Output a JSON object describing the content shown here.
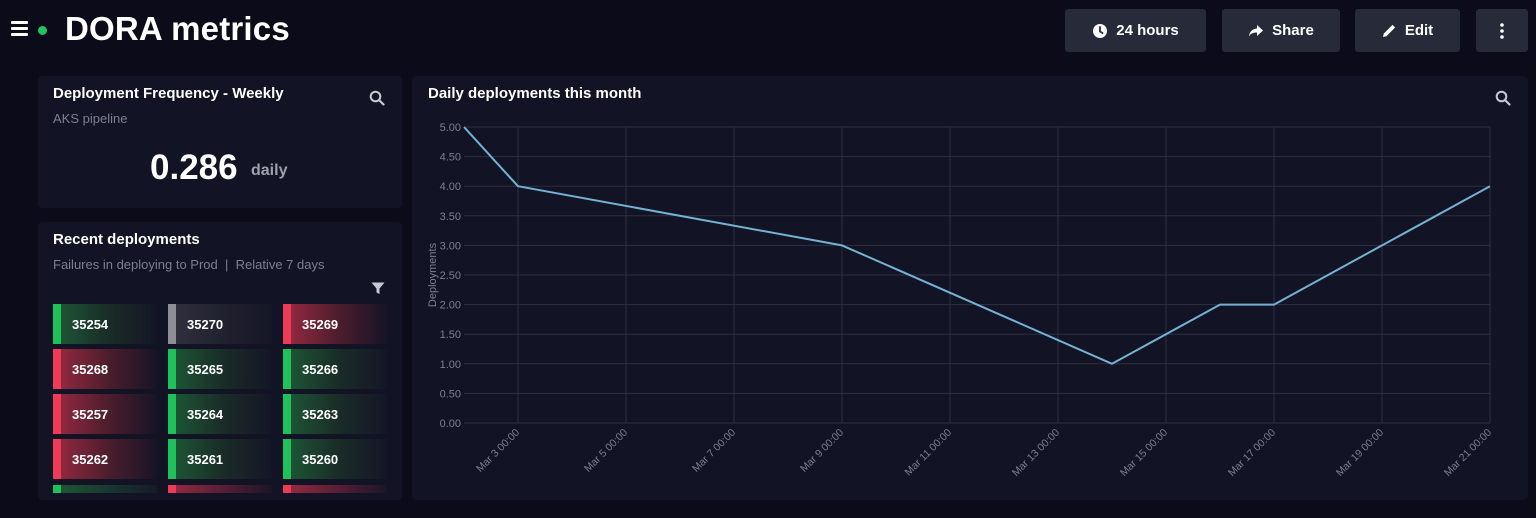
{
  "header": {
    "title": "DORA metrics",
    "status_color": "#22c35e",
    "buttons": {
      "time_range": "24 hours",
      "share": "Share",
      "edit": "Edit"
    }
  },
  "deployment_frequency": {
    "title": "Deployment Frequency - Weekly",
    "subtitle": "AKS pipeline",
    "value": "0.286",
    "unit": "daily"
  },
  "recent_deployments": {
    "title": "Recent deployments",
    "subtitle": "Failures in deploying to Prod  |  Relative 7 days",
    "tiles": [
      {
        "id": "35254",
        "status": "green"
      },
      {
        "id": "35270",
        "status": "gray"
      },
      {
        "id": "35269",
        "status": "red"
      },
      {
        "id": "35268",
        "status": "red"
      },
      {
        "id": "35265",
        "status": "green"
      },
      {
        "id": "35266",
        "status": "green"
      },
      {
        "id": "35257",
        "status": "red"
      },
      {
        "id": "35264",
        "status": "green"
      },
      {
        "id": "35263",
        "status": "green"
      },
      {
        "id": "35262",
        "status": "red"
      },
      {
        "id": "35261",
        "status": "green"
      },
      {
        "id": "35260",
        "status": "green"
      }
    ],
    "partial_row_status": [
      "green",
      "red",
      "red"
    ]
  },
  "daily_chart": {
    "title": "Daily deployments this month"
  },
  "chart_data": {
    "type": "line",
    "title": "Daily deployments this month",
    "xlabel": "",
    "ylabel": "Deployments",
    "x_tick_labels": [
      "Mar 3 00:00",
      "Mar 5 00:00",
      "Mar 7 00:00",
      "Mar 9 00:00",
      "Mar 11 00:00",
      "Mar 13 00:00",
      "Mar 15 00:00",
      "Mar 17 00:00",
      "Mar 19 00:00",
      "Mar 21 00:00"
    ],
    "y_tick_labels": [
      "0.00",
      "0.50",
      "1.00",
      "1.50",
      "2.00",
      "2.50",
      "3.00",
      "3.50",
      "4.00",
      "4.50",
      "5.00"
    ],
    "ylim": [
      0,
      5
    ],
    "xlim": [
      "Mar 2 00:00",
      "Mar 21 00:00"
    ],
    "grid": true,
    "line_color": "#74b2d3",
    "series": [
      {
        "points": [
          {
            "x": "Mar 2 00:00",
            "y": 5
          },
          {
            "x": "Mar 3 00:00",
            "y": 4
          },
          {
            "x": "Mar 9 00:00",
            "y": 3
          },
          {
            "x": "Mar 14 00:00",
            "y": 1
          },
          {
            "x": "Mar 16 00:00",
            "y": 2
          },
          {
            "x": "Mar 17 00:00",
            "y": 2
          },
          {
            "x": "Mar 21 00:00",
            "y": 4
          }
        ]
      }
    ]
  }
}
